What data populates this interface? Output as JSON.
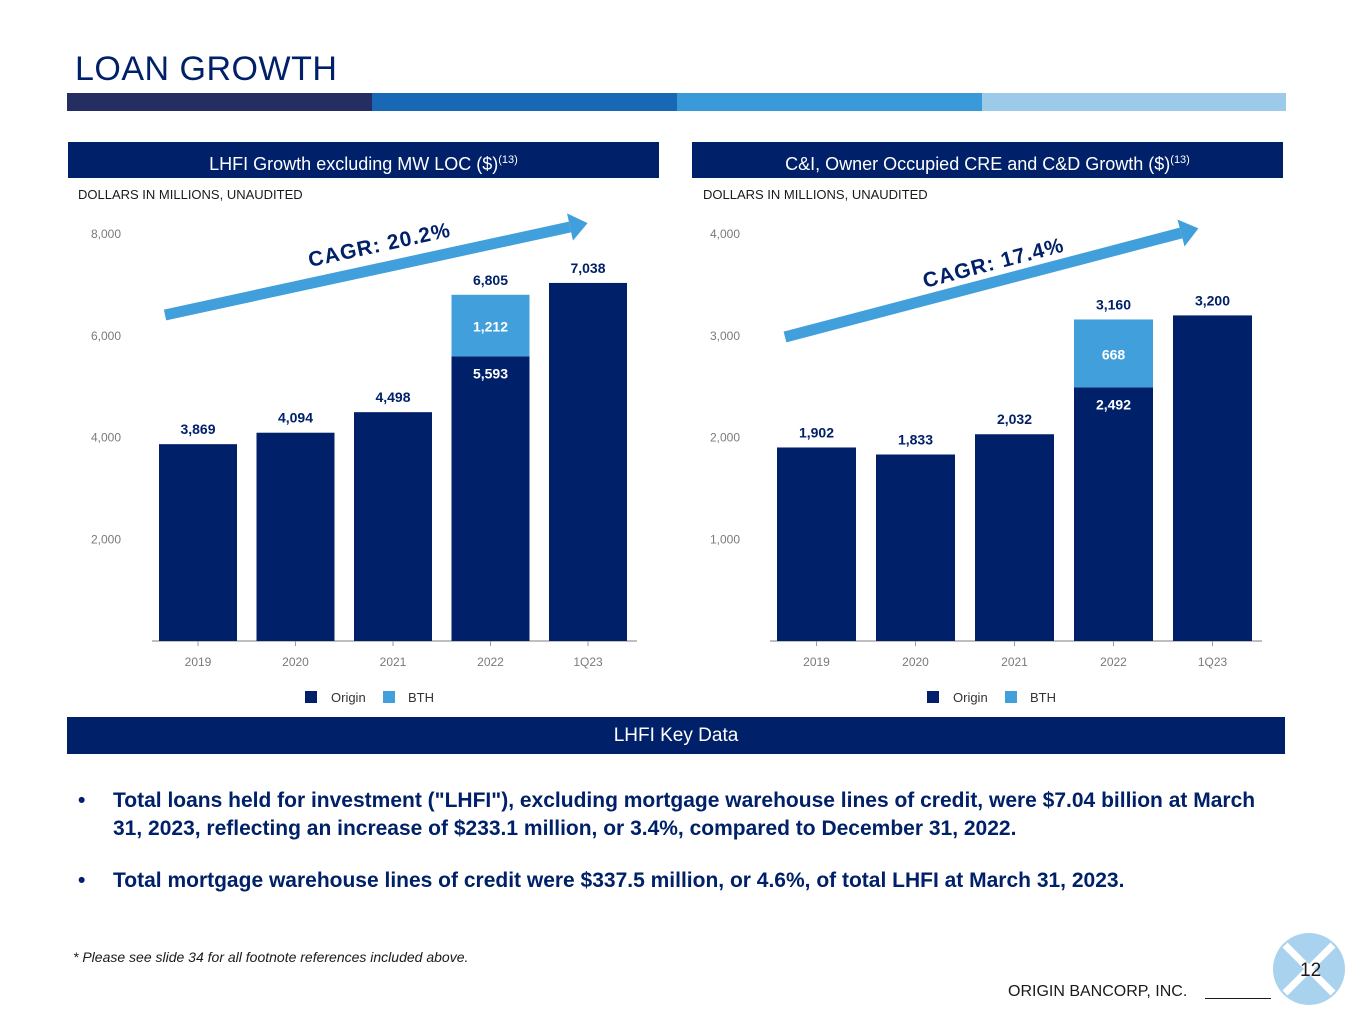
{
  "title": "LOAN GROWTH",
  "colors": {
    "origin": "#002169",
    "bth": "#41a0db",
    "stripe1": "#242e62",
    "stripe2": "#1868b5",
    "stripe3": "#3a99d8",
    "stripe4": "#9ccbea"
  },
  "left_panel": {
    "header": "LHFI Growth excluding MW LOC ($)",
    "footnote_ref": "(13)",
    "note": "DOLLARS IN MILLIONS, UNAUDITED",
    "cagr": "CAGR:  20.2%"
  },
  "right_panel": {
    "header": "C&I, Owner Occupied CRE and C&D Growth ($)",
    "footnote_ref": "(13)",
    "note": "DOLLARS IN MILLIONS, UNAUDITED",
    "cagr": "CAGR:  17.4%"
  },
  "chart_data": [
    {
      "type": "bar",
      "stacked": true,
      "categories": [
        "2019",
        "2020",
        "2021",
        "2022",
        "1Q23"
      ],
      "series": [
        {
          "name": "Origin",
          "values": [
            3869,
            4094,
            4498,
            5593,
            7038
          ]
        },
        {
          "name": "BTH",
          "values": [
            0,
            0,
            0,
            1212,
            0
          ]
        }
      ],
      "totals": [
        3869,
        4094,
        4498,
        6805,
        7038
      ],
      "yticks": [
        "2,000",
        "4,000",
        "6,000",
        "8,000"
      ],
      "ylim": [
        0,
        8000
      ],
      "legend": "bottom-center"
    },
    {
      "type": "bar",
      "stacked": true,
      "categories": [
        "2019",
        "2020",
        "2021",
        "2022",
        "1Q23"
      ],
      "series": [
        {
          "name": "Origin",
          "values": [
            1902,
            1833,
            2032,
            2492,
            3200
          ]
        },
        {
          "name": "BTH",
          "values": [
            0,
            0,
            0,
            668,
            0
          ]
        }
      ],
      "totals": [
        1902,
        1833,
        2032,
        3160,
        3200
      ],
      "yticks": [
        "1,000",
        "2,000",
        "3,000",
        "4,000"
      ],
      "ylim": [
        0,
        4000
      ],
      "legend": "bottom-center"
    }
  ],
  "key_data": {
    "header": "LHFI Key Data",
    "bullets": [
      "Total loans held for investment (\"LHFI\"), excluding mortgage warehouse lines of credit, were $7.04 billion at March 31, 2023, reflecting an increase of $233.1 million, or 3.4%, compared to December 31, 2022.",
      "Total mortgage warehouse lines of credit were $337.5 million, or 4.6%, of total LHFI at March 31, 2023."
    ],
    "bullet_symbol": "•"
  },
  "footnote": "* Please see slide 34 for all footnote references included above.",
  "company": "ORIGIN BANCORP, INC.",
  "page_number": "12"
}
